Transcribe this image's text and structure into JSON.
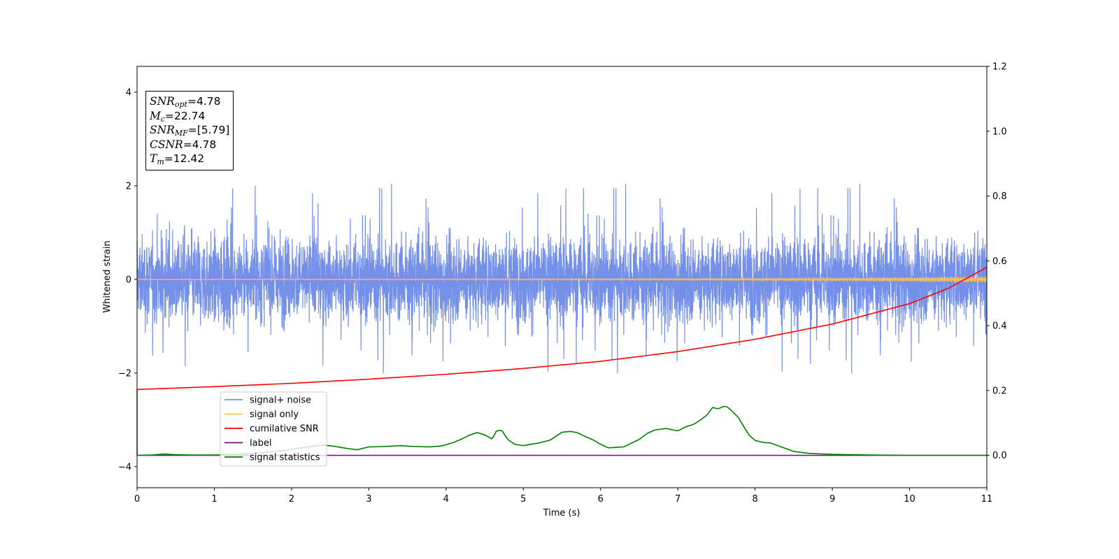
{
  "chart_data": {
    "type": "line",
    "xlabel": "Time (s)",
    "ylabel": "Whitened strain",
    "xlim": [
      0,
      11
    ],
    "ylim": [
      -4.45,
      4.55
    ],
    "y2lim": [
      -0.1,
      1.2
    ],
    "x_ticks": [
      "0",
      "1",
      "2",
      "3",
      "4",
      "5",
      "6",
      "7",
      "8",
      "9",
      "10",
      "11"
    ],
    "y_ticks": [
      "−4",
      "−2",
      "0",
      "2",
      "4"
    ],
    "y2_ticks": [
      "0.0",
      "0.2",
      "0.4",
      "0.6",
      "0.8",
      "1.0",
      "1.2"
    ],
    "legend_position": "lower-left",
    "series": [
      {
        "name": "signal+ noise",
        "axis": "left",
        "color": "#7590e8",
        "description": "dense whitened noise, amplitude ~N(0,0.45), occasional spikes to ~2.1 and ~-2.1"
      },
      {
        "name": "signal only",
        "axis": "left",
        "color": "#ffc24d",
        "x": [
          0,
          1,
          2,
          3,
          4,
          5,
          6,
          7,
          8,
          9,
          10,
          11
        ],
        "amplitude": [
          0.005,
          0.006,
          0.007,
          0.008,
          0.01,
          0.012,
          0.014,
          0.017,
          0.022,
          0.03,
          0.045,
          0.07
        ]
      },
      {
        "name": "cumilative SNR",
        "axis": "right",
        "color": "#ff0000",
        "x": [
          0,
          1,
          2,
          3,
          4,
          5,
          6,
          7,
          8,
          9,
          10,
          10.5,
          11
        ],
        "y": [
          0.203,
          0.212,
          0.222,
          0.235,
          0.25,
          0.268,
          0.29,
          0.32,
          0.358,
          0.405,
          0.468,
          0.515,
          0.58
        ]
      },
      {
        "name": "label",
        "axis": "right",
        "color": "#800080",
        "x": [
          0,
          11
        ],
        "y": [
          0,
          0
        ]
      },
      {
        "name": "signal statistics",
        "axis": "right",
        "color": "#008000",
        "x": [
          0,
          0.2,
          0.35,
          0.5,
          0.7,
          1.0,
          1.3,
          1.6,
          1.9,
          2.1,
          2.25,
          2.4,
          2.55,
          2.7,
          2.85,
          3.0,
          3.2,
          3.4,
          3.6,
          3.8,
          3.95,
          4.1,
          4.2,
          4.3,
          4.4,
          4.5,
          4.6,
          4.65,
          4.72,
          4.8,
          4.9,
          5.0,
          5.2,
          5.35,
          5.5,
          5.6,
          5.7,
          5.8,
          5.9,
          6.0,
          6.1,
          6.3,
          6.5,
          6.6,
          6.7,
          6.85,
          7.0,
          7.1,
          7.2,
          7.3,
          7.38,
          7.45,
          7.52,
          7.6,
          7.65,
          7.72,
          7.78,
          7.85,
          7.92,
          8.0,
          8.1,
          8.2,
          8.35,
          8.5,
          8.7,
          9.0,
          9.5,
          10.0,
          11.0
        ],
        "y": [
          0.0,
          0.001,
          0.004,
          0.002,
          0.001,
          0.001,
          0.003,
          0.008,
          0.015,
          0.022,
          0.027,
          0.032,
          0.028,
          0.022,
          0.017,
          0.026,
          0.027,
          0.03,
          0.027,
          0.026,
          0.029,
          0.04,
          0.05,
          0.062,
          0.07,
          0.063,
          0.05,
          0.075,
          0.078,
          0.048,
          0.033,
          0.03,
          0.038,
          0.047,
          0.071,
          0.074,
          0.07,
          0.058,
          0.048,
          0.034,
          0.023,
          0.026,
          0.049,
          0.067,
          0.078,
          0.083,
          0.075,
          0.088,
          0.095,
          0.11,
          0.125,
          0.148,
          0.143,
          0.152,
          0.148,
          0.132,
          0.118,
          0.09,
          0.063,
          0.046,
          0.04,
          0.038,
          0.025,
          0.012,
          0.006,
          0.003,
          0.001,
          0.0,
          0.0
        ]
      }
    ]
  },
  "info_box": {
    "snr_opt": {
      "base": "SNR",
      "sub": "opt",
      "value": "=4.78"
    },
    "mc": {
      "base": "M",
      "sub": "c",
      "value": "=22.74"
    },
    "snr_mf": {
      "base": "SNR",
      "sub": "MF",
      "value": "=[5.79]"
    },
    "csnr": {
      "base": "CSNR",
      "value": "=4.78"
    },
    "tm": {
      "base": "T",
      "sub": "m",
      "value": "=12.42"
    }
  }
}
